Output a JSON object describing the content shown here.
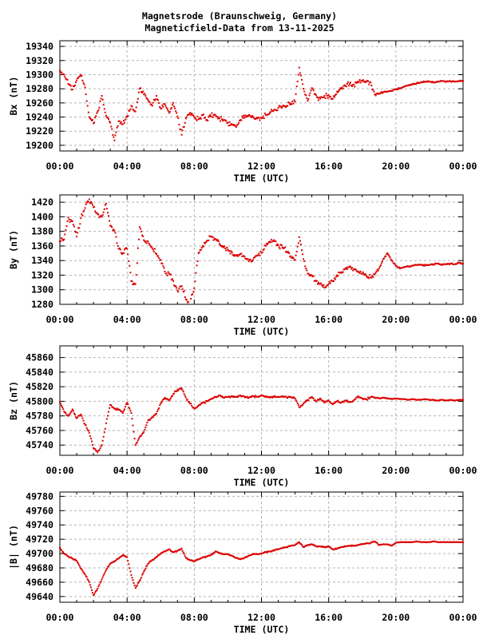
{
  "title": {
    "line1": "Magnetsrode (Braunschweig, Germany)",
    "line2": "Magneticfield-Data from 13-11-2025"
  },
  "colors": {
    "data": "#dd0000",
    "grid": "#b4b4b4",
    "axis": "#000000",
    "text": "#000000",
    "background": "#ffffff"
  },
  "chart_data": [
    {
      "id": "bx",
      "type": "scatter",
      "ylabel": "Bx (nT)",
      "xlabel": "TIME (UTC)",
      "xtick_labels": [
        "00:00",
        "04:00",
        "08:00",
        "12:00",
        "16:00",
        "20:00",
        "00:00"
      ],
      "xtick_hours": [
        0,
        4,
        8,
        12,
        16,
        20,
        24
      ],
      "ylim": [
        19192,
        19348
      ],
      "yticks": [
        19200,
        19220,
        19240,
        19260,
        19280,
        19300,
        19320,
        19340
      ],
      "grid": true,
      "scatter_nT": 5,
      "x_hours": [
        0,
        0.25,
        0.5,
        0.75,
        1,
        1.25,
        1.5,
        1.75,
        2,
        2.25,
        2.5,
        2.75,
        3,
        3.25,
        3.5,
        3.75,
        4,
        4.25,
        4.5,
        4.75,
        5,
        5.25,
        5.5,
        5.75,
        6,
        6.25,
        6.5,
        6.75,
        7,
        7.25,
        7.5,
        7.75,
        8,
        8.25,
        8.5,
        8.75,
        9,
        9.25,
        9.5,
        9.75,
        10,
        10.25,
        10.5,
        10.75,
        11,
        11.25,
        11.5,
        11.75,
        12,
        12.25,
        12.5,
        12.75,
        13,
        13.25,
        13.5,
        13.75,
        14,
        14.25,
        14.5,
        14.75,
        15,
        15.25,
        15.5,
        15.75,
        16,
        16.25,
        16.5,
        16.75,
        17,
        17.25,
        17.5,
        17.75,
        18,
        18.25,
        18.5,
        18.75,
        19,
        19.25,
        19.5,
        19.75,
        20,
        20.25,
        20.5,
        20.75,
        21,
        21.25,
        21.5,
        21.75,
        22,
        22.25,
        22.5,
        22.75,
        23,
        23.25,
        23.5,
        23.75,
        24
      ],
      "values_nT": [
        19306,
        19300,
        19287,
        19279,
        19292,
        19300,
        19282,
        19240,
        19231,
        19248,
        19270,
        19242,
        19232,
        19207,
        19234,
        19230,
        19241,
        19256,
        19248,
        19280,
        19272,
        19264,
        19256,
        19270,
        19252,
        19258,
        19246,
        19260,
        19241,
        19215,
        19238,
        19246,
        19240,
        19237,
        19243,
        19236,
        19241,
        19243,
        19238,
        19236,
        19232,
        19229,
        19226,
        19236,
        19239,
        19243,
        19240,
        19238,
        19239,
        19243,
        19246,
        19250,
        19253,
        19255,
        19256,
        19259,
        19262,
        19310,
        19280,
        19263,
        19281,
        19271,
        19266,
        19270,
        19271,
        19266,
        19276,
        19280,
        19284,
        19287,
        19286,
        19289,
        19291,
        19290,
        19289,
        19272,
        19273,
        19275,
        19276,
        19277,
        19279,
        19281,
        19283,
        19285,
        19286,
        19288,
        19289,
        19290,
        19290,
        19289,
        19290,
        19291,
        19290,
        19291,
        19290,
        19291,
        19291
      ]
    },
    {
      "id": "by",
      "type": "scatter",
      "ylabel": "By (nT)",
      "xlabel": "TIME (UTC)",
      "xtick_labels": [
        "00:00",
        "04:00",
        "08:00",
        "12:00",
        "16:00",
        "20:00",
        "00:00"
      ],
      "xtick_hours": [
        0,
        4,
        8,
        12,
        16,
        20,
        24
      ],
      "ylim": [
        1280,
        1430
      ],
      "yticks": [
        1280,
        1300,
        1320,
        1340,
        1360,
        1380,
        1400,
        1420
      ],
      "grid": true,
      "scatter_nT": 5,
      "x_hours": [
        0,
        0.25,
        0.5,
        0.75,
        1,
        1.25,
        1.5,
        1.75,
        2,
        2.25,
        2.5,
        2.75,
        3,
        3.25,
        3.5,
        3.75,
        4,
        4.25,
        4.5,
        4.75,
        5,
        5.25,
        5.5,
        5.75,
        6,
        6.25,
        6.5,
        6.75,
        7,
        7.25,
        7.5,
        7.75,
        8,
        8.25,
        8.5,
        8.75,
        9,
        9.25,
        9.5,
        9.75,
        10,
        10.25,
        10.5,
        10.75,
        11,
        11.25,
        11.5,
        11.75,
        12,
        12.25,
        12.5,
        12.75,
        13,
        13.25,
        13.5,
        13.75,
        14,
        14.25,
        14.5,
        14.75,
        15,
        15.25,
        15.5,
        15.75,
        16,
        16.25,
        16.5,
        16.75,
        17,
        17.25,
        17.5,
        17.75,
        18,
        18.25,
        18.5,
        18.75,
        19,
        19.25,
        19.5,
        19.75,
        20,
        20.25,
        20.5,
        20.75,
        21,
        21.25,
        21.5,
        21.75,
        22,
        22.25,
        22.5,
        22.75,
        23,
        23.25,
        23.5,
        23.75,
        24
      ],
      "values_nT": [
        1366,
        1369,
        1399,
        1394,
        1373,
        1398,
        1412,
        1424,
        1413,
        1404,
        1400,
        1418,
        1388,
        1381,
        1356,
        1350,
        1356,
        1312,
        1308,
        1386,
        1368,
        1366,
        1357,
        1349,
        1341,
        1325,
        1322,
        1312,
        1299,
        1305,
        1287,
        1281,
        1302,
        1350,
        1360,
        1367,
        1373,
        1369,
        1363,
        1358,
        1355,
        1351,
        1347,
        1349,
        1345,
        1339,
        1341,
        1347,
        1351,
        1360,
        1366,
        1368,
        1361,
        1358,
        1352,
        1346,
        1341,
        1372,
        1342,
        1322,
        1320,
        1312,
        1308,
        1303,
        1308,
        1312,
        1320,
        1324,
        1329,
        1332,
        1328,
        1325,
        1322,
        1319,
        1317,
        1321,
        1329,
        1342,
        1350,
        1340,
        1333,
        1329,
        1331,
        1332,
        1333,
        1334,
        1334,
        1333,
        1334,
        1335,
        1336,
        1335,
        1335,
        1336,
        1335,
        1337,
        1336
      ]
    },
    {
      "id": "bz",
      "type": "scatter",
      "ylabel": "Bz (nT)",
      "xlabel": "TIME (UTC)",
      "xtick_labels": [
        "00:00",
        "04:00",
        "08:00",
        "12:00",
        "16:00",
        "20:00",
        "00:00"
      ],
      "xtick_hours": [
        0,
        4,
        8,
        12,
        16,
        20,
        24
      ],
      "ylim": [
        45726,
        45876
      ],
      "yticks": [
        45740,
        45760,
        45780,
        45800,
        45820,
        45840,
        45860
      ],
      "grid": true,
      "scatter_nT": 2,
      "x_hours": [
        0,
        0.25,
        0.5,
        0.75,
        1,
        1.25,
        1.5,
        1.75,
        2,
        2.25,
        2.5,
        2.75,
        3,
        3.25,
        3.5,
        3.75,
        4,
        4.25,
        4.5,
        4.75,
        5,
        5.25,
        5.5,
        5.75,
        6,
        6.25,
        6.5,
        6.75,
        7,
        7.25,
        7.5,
        7.75,
        8,
        8.25,
        8.5,
        8.75,
        9,
        9.25,
        9.5,
        9.75,
        10,
        10.25,
        10.5,
        10.75,
        11,
        11.25,
        11.5,
        11.75,
        12,
        12.25,
        12.5,
        12.75,
        13,
        13.25,
        13.5,
        13.75,
        14,
        14.25,
        14.5,
        14.75,
        15,
        15.25,
        15.5,
        15.75,
        16,
        16.25,
        16.5,
        16.75,
        17,
        17.25,
        17.5,
        17.75,
        18,
        18.25,
        18.5,
        18.75,
        19,
        19.25,
        19.5,
        19.75,
        20,
        20.25,
        20.5,
        20.75,
        21,
        21.25,
        21.5,
        21.75,
        22,
        22.25,
        22.5,
        22.75,
        23,
        23.25,
        23.5,
        23.75,
        24
      ],
      "values_nT": [
        45799,
        45786,
        45780,
        45789,
        45777,
        45782,
        45768,
        45757,
        45736,
        45730,
        45740,
        45770,
        45795,
        45790,
        45789,
        45784,
        45798,
        45784,
        45740,
        45751,
        45758,
        45774,
        45778,
        45783,
        45797,
        45805,
        45801,
        45810,
        45816,
        45818,
        45805,
        45797,
        45790,
        45794,
        45798,
        45800,
        45803,
        45806,
        45808,
        45805,
        45806,
        45807,
        45806,
        45808,
        45806,
        45805,
        45807,
        45806,
        45808,
        45807,
        45805,
        45806,
        45806,
        45807,
        45805,
        45806,
        45804,
        45792,
        45797,
        45802,
        45806,
        45800,
        45804,
        45798,
        45801,
        45796,
        45800,
        45798,
        45801,
        45799,
        45801,
        45807,
        45804,
        45803,
        45806,
        45805,
        45804,
        45805,
        45804,
        45803,
        45804,
        45803,
        45803,
        45802,
        45803,
        45802,
        45802,
        45803,
        45802,
        45802,
        45801,
        45802,
        45801,
        45802,
        45801,
        45802,
        45802
      ]
    },
    {
      "id": "btotal",
      "type": "scatter",
      "ylabel": "|B| (nT)",
      "xlabel": "TIME (UTC)",
      "xtick_labels": [
        "00:00",
        "04:00",
        "08:00",
        "12:00",
        "16:00",
        "20:00",
        "00:00"
      ],
      "xtick_hours": [
        0,
        4,
        8,
        12,
        16,
        20,
        24
      ],
      "ylim": [
        49632,
        49786
      ],
      "yticks": [
        49640,
        49660,
        49680,
        49700,
        49720,
        49740,
        49760,
        49780
      ],
      "grid": true,
      "scatter_nT": 1.2,
      "x_hours": [
        0,
        0.25,
        0.5,
        0.75,
        1,
        1.25,
        1.5,
        1.75,
        2,
        2.25,
        2.5,
        2.75,
        3,
        3.25,
        3.5,
        3.75,
        4,
        4.25,
        4.5,
        4.75,
        5,
        5.25,
        5.5,
        5.75,
        6,
        6.25,
        6.5,
        6.75,
        7,
        7.25,
        7.5,
        7.75,
        8,
        8.25,
        8.5,
        8.75,
        9,
        9.25,
        9.5,
        9.75,
        10,
        10.25,
        10.5,
        10.75,
        11,
        11.25,
        11.5,
        11.75,
        12,
        12.25,
        12.5,
        12.75,
        13,
        13.25,
        13.5,
        13.75,
        14,
        14.25,
        14.5,
        14.75,
        15,
        15.25,
        15.5,
        15.75,
        16,
        16.25,
        16.5,
        16.75,
        17,
        17.25,
        17.5,
        17.75,
        18,
        18.25,
        18.5,
        18.75,
        19,
        19.25,
        19.5,
        19.75,
        20,
        20.25,
        20.5,
        20.75,
        21,
        21.25,
        21.5,
        21.75,
        22,
        22.25,
        22.5,
        22.75,
        23,
        23.25,
        23.5,
        23.75,
        24
      ],
      "values_nT": [
        49708,
        49700,
        49696,
        49693,
        49690,
        49679,
        49671,
        49660,
        49642,
        49651,
        49664,
        49677,
        49686,
        49689,
        49693,
        49698,
        49695,
        49670,
        49652,
        49662,
        49675,
        49686,
        49691,
        49695,
        49700,
        49703,
        49706,
        49702,
        49704,
        49707,
        49694,
        49691,
        49689,
        49692,
        49695,
        49696,
        49698,
        49703,
        49701,
        49699,
        49699,
        49697,
        49694,
        49692,
        49694,
        49697,
        49699,
        49699,
        49700,
        49702,
        49703,
        49705,
        49706,
        49708,
        49709,
        49711,
        49712,
        49716,
        49709,
        49712,
        49713,
        49710,
        49710,
        49709,
        49710,
        49706,
        49707,
        49709,
        49710,
        49711,
        49711,
        49712,
        49713,
        49714,
        49715,
        49717,
        49712,
        49713,
        49713,
        49711,
        49715,
        49716,
        49716,
        49716,
        49716,
        49717,
        49716,
        49716,
        49716,
        49717,
        49716,
        49716,
        49716,
        49716,
        49716,
        49716,
        49716
      ]
    }
  ]
}
